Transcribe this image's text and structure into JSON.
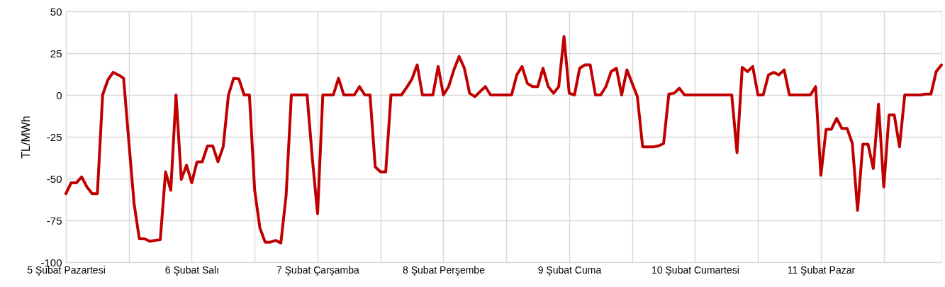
{
  "chart_data": {
    "type": "line",
    "ylabel": "TL/MWh",
    "categories": [
      "5 Şubat Pazartesi",
      null,
      null,
      null,
      null,
      null,
      null,
      null,
      null,
      null,
      null,
      null,
      null,
      null,
      null,
      null,
      null,
      null,
      null,
      null,
      null,
      null,
      null,
      null,
      "6 Şubat Salı",
      null,
      null,
      null,
      null,
      null,
      null,
      null,
      null,
      null,
      null,
      null,
      null,
      null,
      null,
      null,
      null,
      null,
      null,
      null,
      null,
      null,
      null,
      null,
      "7 Şubat Çarşamba",
      null,
      null,
      null,
      null,
      null,
      null,
      null,
      null,
      null,
      null,
      null,
      null,
      null,
      null,
      null,
      null,
      null,
      null,
      null,
      null,
      null,
      null,
      null,
      "8 Şubat Perşembe",
      null,
      null,
      null,
      null,
      null,
      null,
      null,
      null,
      null,
      null,
      null,
      null,
      null,
      null,
      null,
      null,
      null,
      null,
      null,
      null,
      null,
      null,
      null,
      "9 Şubat Cuma",
      null,
      null,
      null,
      null,
      null,
      null,
      null,
      null,
      null,
      null,
      null,
      null,
      null,
      null,
      null,
      null,
      null,
      null,
      null,
      null,
      null,
      null,
      null,
      "10 Şubat Cumartesi",
      null,
      null,
      null,
      null,
      null,
      null,
      null,
      null,
      null,
      null,
      null,
      null,
      null,
      null,
      null,
      null,
      null,
      null,
      null,
      null,
      null,
      null,
      null,
      "11 Şubat Pazar",
      null,
      null,
      null,
      null,
      null,
      null,
      null,
      null,
      null,
      null,
      null,
      null,
      null,
      null,
      null,
      null,
      null,
      null,
      null,
      null,
      null,
      null,
      null
    ],
    "series": [
      {
        "color": "#c00000",
        "values": [
          -59,
          -52.5,
          -52.5,
          -49,
          -55,
          -59,
          -59,
          0,
          9,
          13.5,
          12,
          10,
          -28,
          -65,
          -86,
          -86,
          -87.5,
          -87,
          -86.5,
          -46,
          -57,
          0,
          -50.5,
          -42,
          -52.5,
          -40,
          -40,
          -30.5,
          -30.5,
          -40,
          -31,
          0,
          10,
          9.5,
          0,
          0,
          -57,
          -79.5,
          -88,
          -88,
          -87,
          -88.5,
          -60,
          0,
          0,
          0,
          0,
          -38,
          -71,
          0,
          0,
          0,
          10,
          0,
          0,
          0,
          5,
          0,
          0,
          -43,
          -46,
          -46,
          0,
          0,
          0,
          4.5,
          9.5,
          18,
          0,
          0,
          0,
          17,
          0,
          5,
          15,
          23,
          16,
          1,
          -1,
          2,
          5,
          0,
          0,
          0,
          0,
          0,
          12,
          17,
          7,
          5,
          5,
          16,
          5,
          1,
          5,
          35,
          1,
          0,
          16,
          18,
          18,
          0,
          0,
          5,
          14,
          16,
          0,
          15,
          7,
          -1,
          -31,
          -31,
          -31,
          -30.5,
          -29,
          0.5,
          1,
          4,
          0,
          0,
          0,
          0,
          0,
          0,
          0,
          0,
          0,
          0,
          -34.5,
          16.5,
          14,
          17,
          0,
          0,
          12,
          13.5,
          12,
          15,
          0,
          0,
          0,
          0,
          0,
          5,
          -48,
          -20.5,
          -20.5,
          -14,
          -20,
          -20,
          -29,
          -69,
          -29.5,
          -29.5,
          -44,
          -5.5,
          -55,
          -12,
          -12,
          -31,
          0,
          0,
          0,
          0,
          0.5,
          0.5,
          14,
          18
        ]
      }
    ],
    "ylim": [
      -100,
      50
    ],
    "yticks": [
      -100,
      -75,
      -50,
      -25,
      0,
      25,
      50
    ],
    "grid": true
  }
}
